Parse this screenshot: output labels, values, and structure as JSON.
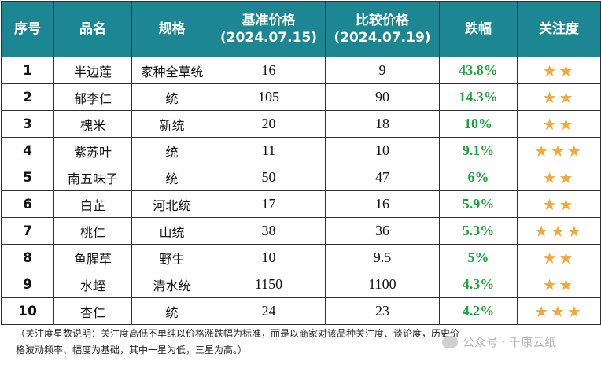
{
  "table": {
    "headers": {
      "seq": "序号",
      "name": "品名",
      "spec": "规格",
      "base_price_title": "基准价格",
      "base_price_date": "(2024.07.15)",
      "compare_price_title": "比较价格",
      "compare_price_date": "(2024.07.19)",
      "change": "跌幅",
      "attention": "关注度"
    },
    "rows": [
      {
        "seq": "1",
        "name": "半边莲",
        "spec": "家种全草统",
        "base": "16",
        "compare": "9",
        "change": "43.8%",
        "stars": "★★",
        "attention_level": 2
      },
      {
        "seq": "2",
        "name": "郁李仁",
        "spec": "统",
        "base": "105",
        "compare": "90",
        "change": "14.3%",
        "stars": "★★",
        "attention_level": 2
      },
      {
        "seq": "3",
        "name": "槐米",
        "spec": "新统",
        "base": "20",
        "compare": "18",
        "change": "10%",
        "stars": "★★",
        "attention_level": 2
      },
      {
        "seq": "4",
        "name": "紫苏叶",
        "spec": "统",
        "base": "11",
        "compare": "10",
        "change": "9.1%",
        "stars": "★★★",
        "attention_level": 3
      },
      {
        "seq": "5",
        "name": "南五味子",
        "spec": "统",
        "base": "50",
        "compare": "47",
        "change": "6%",
        "stars": "★★",
        "attention_level": 2
      },
      {
        "seq": "6",
        "name": "白芷",
        "spec": "河北统",
        "base": "17",
        "compare": "16",
        "change": "5.9%",
        "stars": "★★",
        "attention_level": 2
      },
      {
        "seq": "7",
        "name": "桃仁",
        "spec": "山统",
        "base": "38",
        "compare": "36",
        "change": "5.3%",
        "stars": "★★★",
        "attention_level": 3
      },
      {
        "seq": "8",
        "name": "鱼腥草",
        "spec": "野生",
        "base": "10",
        "compare": "9.5",
        "change": "5%",
        "stars": "★★",
        "attention_level": 2
      },
      {
        "seq": "9",
        "name": "水蛭",
        "spec": "清水统",
        "base": "1150",
        "compare": "1100",
        "change": "4.3%",
        "stars": "★★",
        "attention_level": 2
      },
      {
        "seq": "10",
        "name": "杏仁",
        "spec": "统",
        "base": "24",
        "compare": "23",
        "change": "4.2%",
        "stars": "★★★",
        "attention_level": 3
      }
    ]
  },
  "note": {
    "line1": "（关注度星数说明：关注度高低不单纯以价格涨跌幅为标准，而是以商家对该品种关注度、谈论度，历史价",
    "line2": "格波动频率、幅度为基础，其中一星为低，三星为高。）"
  },
  "watermark": {
    "text": "公众号 · 千康云纸"
  },
  "colors": {
    "header_bg": "#1c8793",
    "change_text": "#1aa33a",
    "star": "#f2a93b"
  }
}
